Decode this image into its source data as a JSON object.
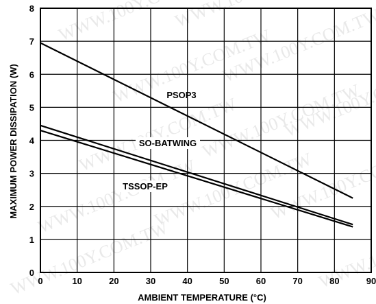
{
  "chart_data": {
    "type": "line",
    "title": "",
    "xlabel": "AMBIENT TEMPERATURE (°C)",
    "ylabel": "MAXIMUM POWER DISSIPATION (W)",
    "xlim": [
      0,
      90
    ],
    "ylim": [
      0,
      8
    ],
    "x_ticks": [
      0,
      10,
      20,
      30,
      40,
      50,
      60,
      70,
      80,
      90
    ],
    "y_ticks": [
      0,
      1,
      2,
      3,
      4,
      5,
      6,
      7,
      8
    ],
    "grid": true,
    "legend": "inline-labels",
    "series": [
      {
        "name": "PSOP3",
        "x": [
          0,
          85
        ],
        "y": [
          6.95,
          2.25
        ],
        "color": "#000000"
      },
      {
        "name": "SO-BATWING",
        "x": [
          0,
          85
        ],
        "y": [
          4.45,
          1.45
        ],
        "color": "#000000"
      },
      {
        "name": "TSSOP-EP",
        "x": [
          0,
          85
        ],
        "y": [
          4.3,
          1.38
        ],
        "color": "#000000"
      }
    ]
  },
  "watermark": "WWW.100Y.COM.TW"
}
